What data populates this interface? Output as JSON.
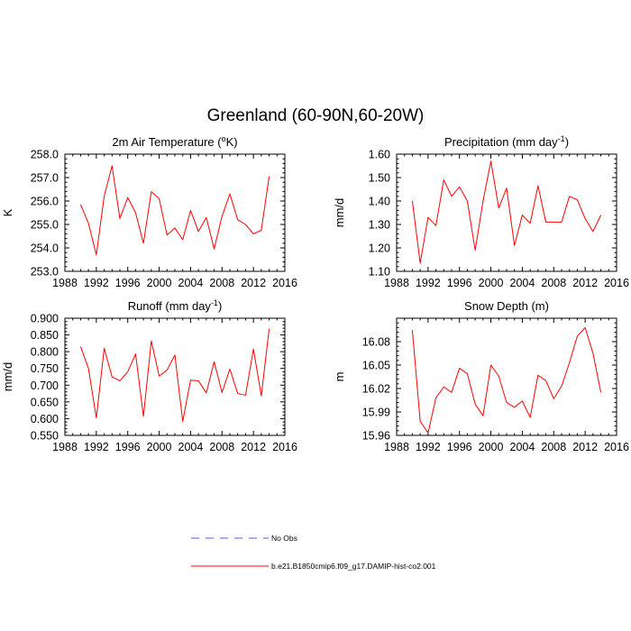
{
  "figure": {
    "title": "Greenland (60-90N,60-20W)"
  },
  "legend": [
    {
      "label": "No Obs",
      "color": "#5555ff",
      "style": "dashed"
    },
    {
      "label": "b.e21.B1850cmip6.f09_g17.DAMIP-hist-co2.001",
      "color": "#ff0000",
      "style": "solid"
    }
  ],
  "chart_data": [
    {
      "type": "line",
      "title": "2m Air Temperature (",
      "title_sup": "o",
      "title_suffix": "K)",
      "ylabel": "K",
      "xlim": [
        1988,
        2016
      ],
      "xticks": [
        "1988",
        "1992",
        "1996",
        "2000",
        "2004",
        "2008",
        "2012",
        "2016"
      ],
      "ylim": [
        253.0,
        258.0
      ],
      "yticks": [
        "253.0",
        "254.0",
        "255.0",
        "256.0",
        "257.0",
        "258.0"
      ],
      "series": [
        {
          "color": "#ff0000",
          "x": [
            1990,
            1991,
            1992,
            1993,
            1994,
            1995,
            1996,
            1997,
            1998,
            1999,
            2000,
            2001,
            2002,
            2003,
            2004,
            2005,
            2006,
            2007,
            2008,
            2009,
            2010,
            2011,
            2012,
            2013,
            2014
          ],
          "y": [
            255.85,
            255.05,
            253.7,
            256.2,
            257.5,
            255.25,
            256.15,
            255.5,
            254.2,
            256.4,
            256.1,
            254.55,
            254.85,
            254.35,
            255.6,
            254.7,
            255.3,
            253.95,
            255.35,
            256.3,
            255.2,
            255.0,
            254.6,
            254.75,
            257.05
          ]
        }
      ]
    },
    {
      "type": "line",
      "title": "Precipitation (mm day",
      "title_sup": "-1",
      "title_suffix": ")",
      "ylabel": "mm/d",
      "xlim": [
        1988,
        2016
      ],
      "xticks": [
        "1988",
        "1992",
        "1996",
        "2000",
        "2004",
        "2008",
        "2012",
        "2016"
      ],
      "ylim": [
        1.1,
        1.6
      ],
      "yticks": [
        "1.10",
        "1.20",
        "1.30",
        "1.40",
        "1.50",
        "1.60"
      ],
      "series": [
        {
          "color": "#ff0000",
          "x": [
            1990,
            1991,
            1992,
            1993,
            1994,
            1995,
            1996,
            1997,
            1998,
            1999,
            2000,
            2001,
            2002,
            2003,
            2004,
            2005,
            2006,
            2007,
            2008,
            2009,
            2010,
            2011,
            2012,
            2013,
            2014
          ],
          "y": [
            1.4,
            1.135,
            1.33,
            1.295,
            1.49,
            1.42,
            1.46,
            1.4,
            1.19,
            1.4,
            1.57,
            1.37,
            1.455,
            1.21,
            1.34,
            1.305,
            1.465,
            1.31,
            1.31,
            1.31,
            1.42,
            1.405,
            1.325,
            1.27,
            1.34
          ]
        }
      ]
    },
    {
      "type": "line",
      "title": "Runoff (mm day",
      "title_sup": "-1",
      "title_suffix": ")",
      "ylabel": "mm/d",
      "xlim": [
        1988,
        2016
      ],
      "xticks": [
        "1988",
        "1992",
        "1996",
        "2000",
        "2004",
        "2008",
        "2012",
        "2016"
      ],
      "ylim": [
        0.55,
        0.9
      ],
      "yticks": [
        "0.550",
        "0.600",
        "0.650",
        "0.700",
        "0.750",
        "0.800",
        "0.850",
        "0.900"
      ],
      "series": [
        {
          "color": "#ff0000",
          "x": [
            1990,
            1991,
            1992,
            1993,
            1994,
            1995,
            1996,
            1997,
            1998,
            1999,
            2000,
            2001,
            2002,
            2003,
            2004,
            2005,
            2006,
            2007,
            2008,
            2009,
            2010,
            2011,
            2012,
            2013,
            2014
          ],
          "y": [
            0.815,
            0.75,
            0.602,
            0.81,
            0.725,
            0.713,
            0.74,
            0.793,
            0.607,
            0.832,
            0.727,
            0.745,
            0.79,
            0.592,
            0.715,
            0.713,
            0.677,
            0.77,
            0.678,
            0.748,
            0.675,
            0.67,
            0.808,
            0.668,
            0.868
          ]
        }
      ]
    },
    {
      "type": "line",
      "title": "Snow Depth (m)",
      "title_sup": "",
      "title_suffix": "",
      "ylabel": "m",
      "xlim": [
        1988,
        2016
      ],
      "xticks": [
        "1988",
        "1992",
        "1996",
        "2000",
        "2004",
        "2008",
        "2012",
        "2016"
      ],
      "ylim": [
        15.96,
        16.11
      ],
      "yticks": [
        "15.96",
        "15.99",
        "16.02",
        "16.05",
        "16.08"
      ],
      "ytick_values": [
        15.96,
        15.99,
        16.02,
        16.05,
        16.08
      ],
      "series": [
        {
          "color": "#ff0000",
          "x": [
            1990,
            1991,
            1992,
            1993,
            1994,
            1995,
            1996,
            1997,
            1998,
            1999,
            2000,
            2001,
            2002,
            2003,
            2004,
            2005,
            2006,
            2007,
            2008,
            2009,
            2010,
            2011,
            2012,
            2013,
            2014
          ],
          "y": [
            16.095,
            15.978,
            15.963,
            16.008,
            16.022,
            16.015,
            16.046,
            16.039,
            16.0,
            15.985,
            16.05,
            16.036,
            16.002,
            15.996,
            16.004,
            15.983,
            16.037,
            16.03,
            16.007,
            16.023,
            16.053,
            16.087,
            16.098,
            16.065,
            16.015
          ]
        }
      ]
    }
  ]
}
